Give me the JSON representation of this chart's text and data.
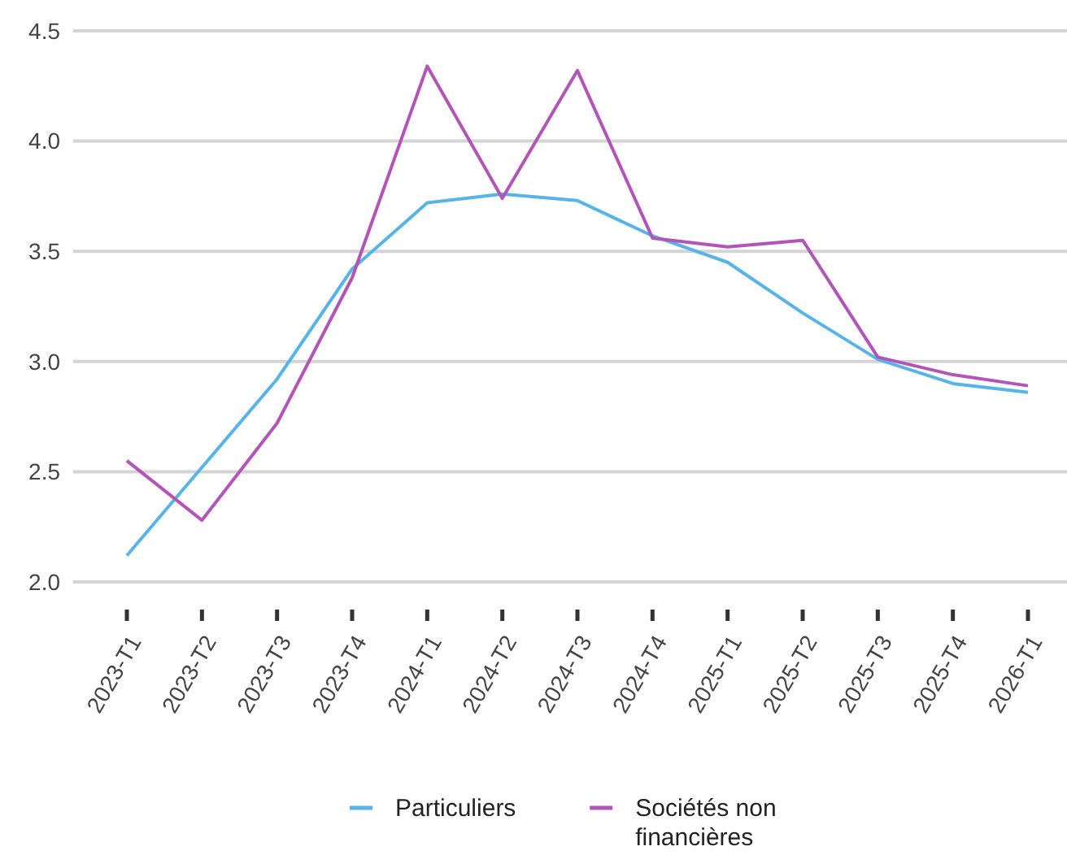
{
  "chart_data": {
    "type": "line",
    "categories": [
      "2023-T1",
      "2023-T2",
      "2023-T3",
      "2023-T4",
      "2024-T1",
      "2024-T2",
      "2024-T3",
      "2024-T4",
      "2025-T1",
      "2025-T2",
      "2025-T3",
      "2025-T4",
      "2026-T1"
    ],
    "series": [
      {
        "name": "Particuliers",
        "color": "#56b4e9",
        "values": [
          2.12,
          2.52,
          2.92,
          3.42,
          3.72,
          3.76,
          3.73,
          3.57,
          3.45,
          3.22,
          3.01,
          2.9,
          2.86
        ]
      },
      {
        "name": "Sociétés non financières",
        "color": "#b254b8",
        "values": [
          2.55,
          2.28,
          2.72,
          3.38,
          4.34,
          3.74,
          4.32,
          3.56,
          3.52,
          3.55,
          3.02,
          2.94,
          2.89
        ]
      }
    ],
    "ylim": [
      2.0,
      4.5
    ],
    "yticks": [
      {
        "value": 2,
        "label": "2.0"
      },
      {
        "value": 2.5,
        "label": "2.5"
      },
      {
        "value": 3,
        "label": "3.0"
      },
      {
        "value": 3.5,
        "label": "3.5"
      },
      {
        "value": 4,
        "label": "4.0"
      },
      {
        "value": 4.5,
        "label": "4.5"
      }
    ],
    "grid": "y",
    "legend": "bottom",
    "marker": "none",
    "line_style": "solid"
  }
}
